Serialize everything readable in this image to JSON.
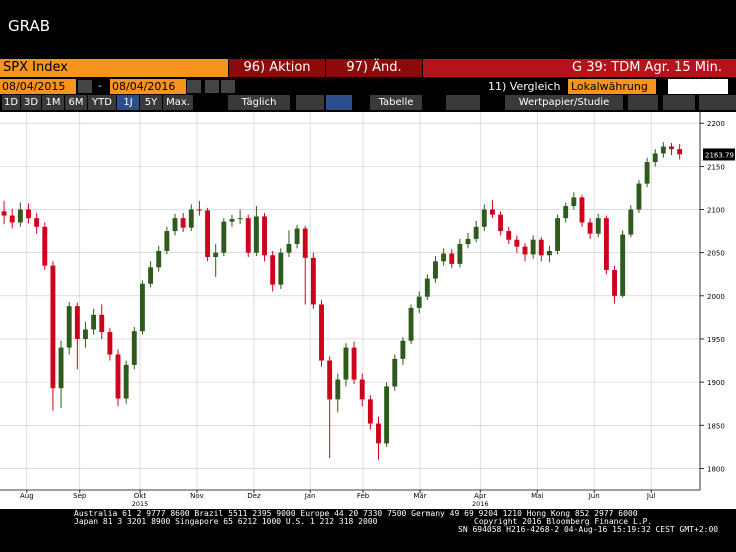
{
  "header": {
    "title": "GRAB"
  },
  "toolbar": {
    "security": "SPX Index",
    "action": "96) Aktion",
    "change": "97) Änd.",
    "function": "G 39: TDM Agr. 15 Min.",
    "start_date": "08/04/2015",
    "date_separator": "-",
    "end_date": "08/04/2016",
    "compare": "11) Vergleich",
    "currency": "Lokalwährung",
    "periods": [
      "1D",
      "3D",
      "1M",
      "6M",
      "YTD",
      "1J",
      "5Y",
      "Max."
    ],
    "frequency": "Täglich",
    "table": "Tabelle",
    "study": "Wertpapier/Studie"
  },
  "chart_data": {
    "type": "candlestick",
    "up_color": "#2e5a1c",
    "down_color": "#d0021b",
    "grid": true,
    "xlim": [
      0,
      86
    ],
    "xticks": [
      {
        "value": 3.3,
        "label": "Aug"
      },
      {
        "value": 9.8,
        "label": "Sep"
      },
      {
        "value": 17.2,
        "label": "Okt"
      },
      {
        "value": 24.2,
        "label": "Nov"
      },
      {
        "value": 31.2,
        "label": "Dez"
      },
      {
        "value": 38.1,
        "label": "Jan"
      },
      {
        "value": 44.6,
        "label": "Feb"
      },
      {
        "value": 51.6,
        "label": "Mär"
      },
      {
        "value": 59,
        "label": "Apr"
      },
      {
        "value": 66,
        "label": "Mai"
      },
      {
        "value": 73,
        "label": "Jun"
      },
      {
        "value": 80,
        "label": "Jul"
      }
    ],
    "xticks_years": [
      {
        "value": 17.2,
        "label": "2015"
      },
      {
        "value": 59,
        "label": "2016"
      }
    ],
    "ylim": [
      1775,
      2213
    ],
    "yticks": [
      1800,
      1850,
      1900,
      1950,
      2000,
      2050,
      2100,
      2150,
      2200
    ],
    "last_price": 2163.79,
    "open": [
      2098,
      2093,
      2085,
      2100,
      2090,
      2080,
      2035,
      1893,
      1940,
      1988,
      1950,
      1961,
      1978,
      1958,
      1932,
      1881,
      1920,
      1959,
      2014,
      2033,
      2052,
      2075,
      2090,
      2079,
      2100,
      2099,
      2045,
      2050,
      2086,
      2089,
      2090,
      2050,
      2092,
      2047,
      2013,
      2050,
      2060,
      2078,
      2044,
      1990,
      1925,
      1880,
      1903,
      1940,
      1903,
      1880,
      1852,
      1829,
      1895,
      1927,
      1948,
      1986,
      1999,
      2020,
      2040,
      2049,
      2037,
      2060,
      2066,
      2080,
      2100,
      2094,
      2075,
      2065,
      2057,
      2048,
      2065,
      2047,
      2052,
      2090,
      2104,
      2114,
      2085,
      2072,
      2090,
      2030,
      2000,
      2071,
      2100,
      2130,
      2155,
      2165,
      2173,
      2170
    ],
    "high": [
      2110,
      2101,
      2108,
      2107,
      2096,
      2085,
      2040,
      1948,
      1993,
      1992,
      1970,
      1985,
      1990,
      1963,
      1938,
      1925,
      1964,
      2018,
      2040,
      2058,
      2080,
      2095,
      2096,
      2106,
      2110,
      2102,
      2060,
      2090,
      2094,
      2100,
      2094,
      2104,
      2096,
      2052,
      2055,
      2076,
      2082,
      2081,
      2050,
      1995,
      1930,
      1910,
      1945,
      1947,
      1910,
      1885,
      1860,
      1900,
      1932,
      1952,
      1990,
      2005,
      2025,
      2046,
      2055,
      2054,
      2066,
      2073,
      2087,
      2106,
      2111,
      2098,
      2080,
      2070,
      2061,
      2070,
      2068,
      2058,
      2094,
      2108,
      2120,
      2117,
      2090,
      2095,
      2093,
      2035,
      2076,
      2105,
      2134,
      2160,
      2170,
      2178,
      2177,
      2176
    ],
    "low": [
      2083,
      2078,
      2080,
      2084,
      2072,
      2030,
      1867,
      1870,
      1932,
      1915,
      1940,
      1955,
      1950,
      1925,
      1872,
      1875,
      1915,
      1955,
      2010,
      2028,
      2048,
      2070,
      2074,
      2075,
      2093,
      2040,
      2022,
      2046,
      2080,
      2083,
      2045,
      2046,
      2040,
      2005,
      2008,
      2045,
      2055,
      1990,
      1985,
      1918,
      1812,
      1865,
      1895,
      1898,
      1872,
      1845,
      1810,
      1825,
      1890,
      1920,
      1944,
      1980,
      1995,
      2015,
      2035,
      2032,
      2033,
      2055,
      2062,
      2075,
      2090,
      2070,
      2060,
      2050,
      2040,
      2043,
      2040,
      2039,
      2048,
      2085,
      2100,
      2080,
      2066,
      2068,
      2025,
      1991,
      1998,
      2068,
      2096,
      2126,
      2150,
      2160,
      2163,
      2158
    ],
    "close": [
      2093,
      2085,
      2100,
      2090,
      2080,
      2035,
      1893,
      1940,
      1988,
      1950,
      1961,
      1978,
      1958,
      1932,
      1881,
      1920,
      1959,
      2014,
      2033,
      2052,
      2075,
      2090,
      2079,
      2100,
      2099,
      2045,
      2050,
      2086,
      2089,
      2090,
      2050,
      2092,
      2047,
      2013,
      2050,
      2060,
      2078,
      2044,
      1990,
      1925,
      1880,
      1903,
      1940,
      1903,
      1880,
      1852,
      1829,
      1895,
      1927,
      1948,
      1986,
      1999,
      2020,
      2040,
      2049,
      2037,
      2060,
      2066,
      2080,
      2100,
      2094,
      2075,
      2065,
      2057,
      2048,
      2065,
      2047,
      2052,
      2090,
      2104,
      2114,
      2085,
      2072,
      2090,
      2030,
      2000,
      2071,
      2100,
      2130,
      2155,
      2165,
      2173,
      2170,
      2164
    ]
  },
  "footer": {
    "lines": [
      "Australia 61 2 9777 8600 Brazil 5511 2395 9000 Europe 44 20 7330 7500 Germany 49 69 9204 1210 Hong Kong 852 2977 6000",
      "Japan 81 3 3201 8900 Singapore 65 6212 1000 U.S. 1 212 318 2000",
      "Copyright 2016 Bloomberg Finance L.P.",
      "SN 694058 H216-4268-2 04-Aug-16 15:19:32 CEST GMT+2:00"
    ]
  }
}
